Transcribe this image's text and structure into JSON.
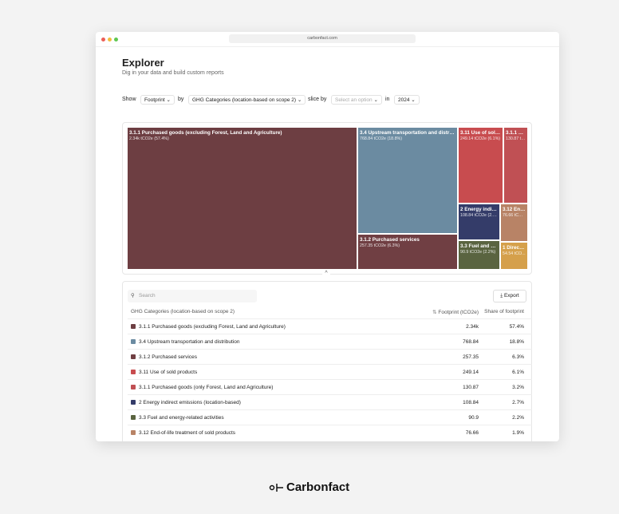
{
  "browser": {
    "url": "carbonfact.com"
  },
  "header": {
    "title": "Explorer",
    "subtitle": "Dig in your data and build custom reports"
  },
  "controls": {
    "show_label": "Show",
    "measure": "Footprint",
    "by_label": "by",
    "dimension": "GHG Categories (location-based on scope 2)",
    "slice_label": "slice by",
    "slice": "Select an option",
    "in_label": "in",
    "year": "2024"
  },
  "treemap": {
    "tiles": [
      {
        "label": "3.1.1 Purchased goods (excluding Forest, Land and Agriculture)",
        "value_label": "2.34k tCO2e (57.4%)",
        "color": "#6d3e42"
      },
      {
        "label": "3.4 Upstream transportation and distribution",
        "value_label": "768.84 tCO2e (18.8%)",
        "color": "#6b8ba1"
      },
      {
        "label": "3.1.2 Purchased services",
        "value_label": "257.35 tCO2e (6.3%)",
        "color": "#703f43"
      },
      {
        "label": "3.11 Use of sold products",
        "value_label": "249.14 tCO2e (6.1%)",
        "color": "#c84c4f"
      },
      {
        "label": "3.1.1 Purchased goods (only Forest, Land and Agriculture)",
        "value_label": "130.87 tCO2e (3.2%)",
        "color": "#c05054"
      },
      {
        "label": "2 Energy indirect emissions (location-based)",
        "value_label": "108.84 tCO2e (2.7%)",
        "color": "#343c69"
      },
      {
        "label": "3.12 End-of-life treatment of sold products",
        "value_label": "76.66 tCO2e (1.9%)",
        "color": "#b88366"
      },
      {
        "label": "3.3 Fuel and energy-related activities",
        "value_label": "90.9 tCO2e (2.2%)",
        "color": "#5a6440"
      },
      {
        "label": "1 Direct ...",
        "value_label": "54.54 tCO...",
        "color": "#d5a04b"
      }
    ]
  },
  "table": {
    "search_placeholder": "Search",
    "export": "Export",
    "columns": [
      "GHG Categories (location-based on scope 2)",
      "Footprint (tCO2e)",
      "Share of footprint"
    ],
    "rows": [
      {
        "color": "#6d3e42",
        "name": "3.1.1 Purchased goods (excluding Forest, Land and Agriculture)",
        "footprint": "2.34k",
        "share": "57.4%"
      },
      {
        "color": "#6b8ba1",
        "name": "3.4 Upstream transportation and distribution",
        "footprint": "768.84",
        "share": "18.8%"
      },
      {
        "color": "#703f43",
        "name": "3.1.2 Purchased services",
        "footprint": "257.35",
        "share": "6.3%"
      },
      {
        "color": "#c84c4f",
        "name": "3.11 Use of sold products",
        "footprint": "249.14",
        "share": "6.1%"
      },
      {
        "color": "#c05054",
        "name": "3.1.1 Purchased goods (only Forest, Land and Agriculture)",
        "footprint": "130.87",
        "share": "3.2%"
      },
      {
        "color": "#343c69",
        "name": "2 Energy indirect emissions (location-based)",
        "footprint": "108.84",
        "share": "2.7%"
      },
      {
        "color": "#5a6440",
        "name": "3.3 Fuel and energy-related activities",
        "footprint": "90.9",
        "share": "2.2%"
      },
      {
        "color": "#b88366",
        "name": "3.12 End-of-life treatment of sold products",
        "footprint": "76.66",
        "share": "1.9%"
      }
    ]
  },
  "footer": {
    "brand": "Carbonfact"
  }
}
